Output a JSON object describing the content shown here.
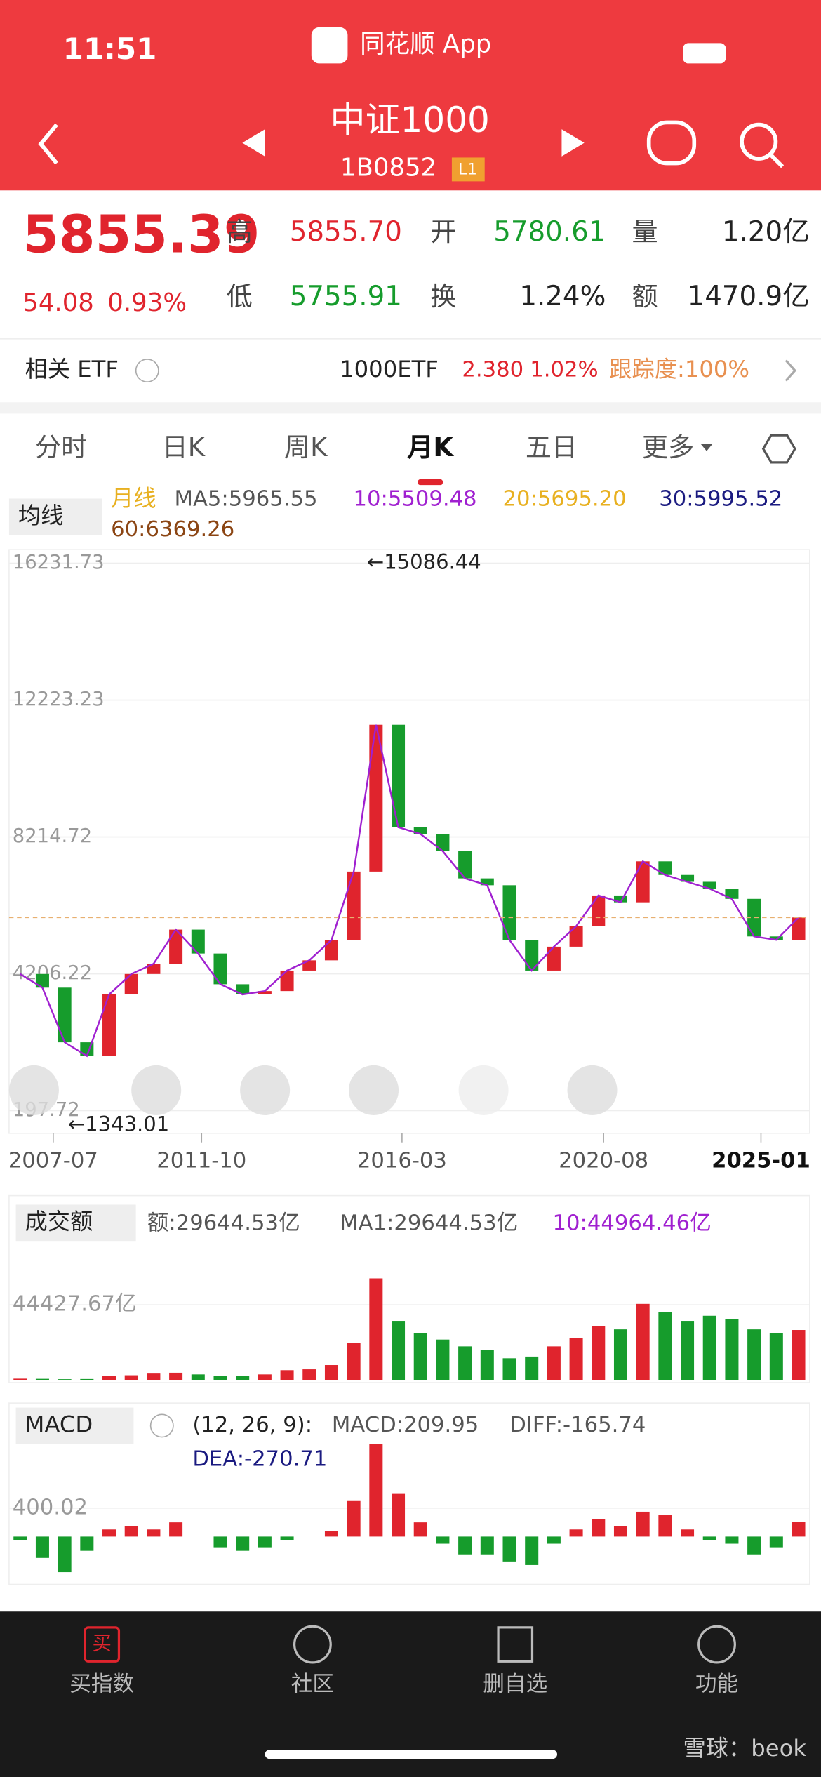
{
  "status": {
    "time": "11:51",
    "app": "同花顺 App"
  },
  "header": {
    "title": "中证1000",
    "code": "1B0852",
    "badge": "L1"
  },
  "quote": {
    "price": "5855.39",
    "change": "54.08",
    "change_pct": "0.93%",
    "fields": [
      {
        "label": "高",
        "value": "5855.70"
      },
      {
        "label": "开",
        "value": "5780.61"
      },
      {
        "label": "量",
        "value": "1.20亿"
      },
      {
        "label": "低",
        "value": "5755.91"
      },
      {
        "label": "换",
        "value": "1.24%"
      },
      {
        "label": "额",
        "value": "1470.9亿"
      }
    ]
  },
  "etf": {
    "label": "相关 ETF",
    "name": "1000ETF",
    "price": "2.380",
    "pct": "1.02%",
    "tracking": "跟踪度:100%"
  },
  "tabs": [
    "分时",
    "日K",
    "周K",
    "月K",
    "五日",
    "更多"
  ],
  "chart": {
    "ma_button": "均线",
    "ma_label": "月线",
    "ma": [
      {
        "text": "MA5:5965.55",
        "color": "#555555"
      },
      {
        "text": "10:5509.48",
        "color": "#a020d0"
      },
      {
        "text": "20:5695.20",
        "color": "#e8b020"
      },
      {
        "text": "30:5995.52",
        "color": "#1a1a80"
      },
      {
        "text": "60:6369.26",
        "color": "#8b4513"
      }
    ],
    "ylim": [
      197.72,
      16231.73
    ],
    "yticks": [
      16231.73,
      12223.23,
      8214.72,
      4206.22,
      197.72
    ],
    "high_label": "←15086.44",
    "low_label": "←1343.01",
    "xlabels": [
      "2007-07",
      "2011-10",
      "2016-03",
      "2020-08",
      "2025-01"
    ],
    "up_color": "#e0242d",
    "down_color": "#169c2c",
    "closes": [
      4200,
      3800,
      2200,
      1800,
      3600,
      4200,
      4500,
      5500,
      4800,
      3900,
      3600,
      3700,
      4300,
      4600,
      5200,
      7200,
      11500,
      8500,
      8300,
      7800,
      7000,
      6800,
      5200,
      4300,
      5000,
      5600,
      6500,
      6300,
      7500,
      7100,
      6900,
      6700,
      6400,
      5300,
      5200,
      5855
    ]
  },
  "volume": {
    "button": "成交额",
    "amount": "额:29644.53亿",
    "ma1": "MA1:29644.53亿",
    "ma10": "10:44964.46亿",
    "ylim": [
      0,
      80000
    ],
    "yticks": [
      {
        "value": 44427.67,
        "label": "44427.67亿"
      }
    ],
    "values": [
      1000,
      900,
      700,
      800,
      2500,
      3000,
      4000,
      4500,
      3500,
      2500,
      2800,
      3500,
      6000,
      6500,
      9000,
      22000,
      60000,
      35000,
      28000,
      24000,
      20000,
      18000,
      13000,
      14000,
      20000,
      25000,
      32000,
      30000,
      45000,
      40000,
      35000,
      38000,
      36000,
      30000,
      28000,
      29644
    ]
  },
  "macd": {
    "button": "MACD",
    "params": "(12, 26, 9):",
    "macd": "MACD:209.95",
    "diff": "DIFF:-165.74",
    "dea": "DEA:-270.71",
    "ylim": [
      -640,
      1400
    ],
    "yticks": [
      400.02
    ],
    "values": [
      -50,
      -300,
      -500,
      -200,
      100,
      150,
      100,
      200,
      0,
      -150,
      -200,
      -150,
      -50,
      0,
      80,
      500,
      1300,
      600,
      200,
      -100,
      -250,
      -250,
      -350,
      -400,
      -100,
      100,
      250,
      150,
      350,
      300,
      100,
      -50,
      -100,
      -250,
      -150,
      209.95
    ]
  },
  "nav": [
    "买指数",
    "社区",
    "删自选",
    "功能"
  ],
  "nav_icon": "买",
  "watermark": "雪球：beok"
}
